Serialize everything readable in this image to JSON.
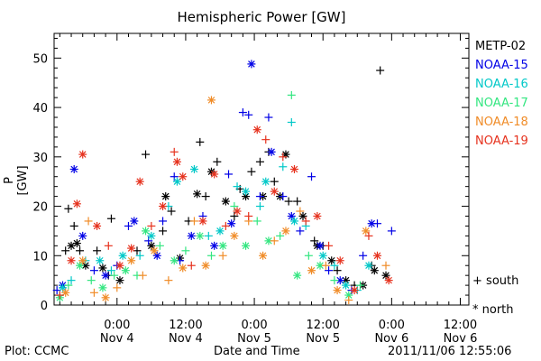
{
  "chart_data": {
    "type": "scatter",
    "title": "Hemispheric Power [GW]",
    "ylabel": "P [GW]",
    "xlabel": "Date and Time",
    "ylim": [
      0,
      55
    ],
    "y_ticks": [
      0,
      10,
      20,
      30,
      40,
      50
    ],
    "x_ticks": [
      {
        "time": "0:00",
        "date": "Nov 4",
        "hours": 0
      },
      {
        "time": "12:00",
        "date": "Nov 4",
        "hours": 12
      },
      {
        "time": "0:00",
        "date": "Nov 5",
        "hours": 24
      },
      {
        "time": "12:00",
        "date": "Nov 5",
        "hours": 36
      },
      {
        "time": "0:00",
        "date": "Nov 6",
        "hours": 48
      },
      {
        "time": "12:00",
        "date": "Nov 6",
        "hours": 60
      }
    ],
    "xlim_hours": [
      -11,
      61.5
    ],
    "marker_key": {
      "south": "+",
      "north": "*"
    },
    "series": [
      {
        "name": "METP-02",
        "color": "#000000",
        "points": [
          {
            "x": -9.0,
            "y": 11,
            "m": "+"
          },
          {
            "x": -8.5,
            "y": 19.5,
            "m": "+"
          },
          {
            "x": -8.0,
            "y": 12,
            "m": "*"
          },
          {
            "x": -7.5,
            "y": 16,
            "m": "+"
          },
          {
            "x": -7.0,
            "y": 12.5,
            "m": "*"
          },
          {
            "x": -6.5,
            "y": 11,
            "m": "+"
          },
          {
            "x": -5.5,
            "y": 8,
            "m": "*"
          },
          {
            "x": -3.5,
            "y": 11,
            "m": "+"
          },
          {
            "x": -2.5,
            "y": 7.5,
            "m": "*"
          },
          {
            "x": -1.5,
            "y": 6,
            "m": "+"
          },
          {
            "x": -1.0,
            "y": 17.5,
            "m": "+"
          },
          {
            "x": 0.5,
            "y": 5,
            "m": "*"
          },
          {
            "x": 3.5,
            "y": 11,
            "m": "+"
          },
          {
            "x": 5.0,
            "y": 30.5,
            "m": "+"
          },
          {
            "x": 6.0,
            "y": 12,
            "m": "*"
          },
          {
            "x": 8.0,
            "y": 15,
            "m": "+"
          },
          {
            "x": 8.5,
            "y": 22,
            "m": "*"
          },
          {
            "x": 9.5,
            "y": 19,
            "m": "+"
          },
          {
            "x": 11.0,
            "y": 9.5,
            "m": "*"
          },
          {
            "x": 12.5,
            "y": 17,
            "m": "+"
          },
          {
            "x": 14.0,
            "y": 22.5,
            "m": "*"
          },
          {
            "x": 14.5,
            "y": 33,
            "m": "+"
          },
          {
            "x": 15.5,
            "y": 22,
            "m": "+"
          },
          {
            "x": 16.5,
            "y": 27,
            "m": "*"
          },
          {
            "x": 17.5,
            "y": 29,
            "m": "+"
          },
          {
            "x": 19.0,
            "y": 21,
            "m": "*"
          },
          {
            "x": 20.5,
            "y": 18,
            "m": "+"
          },
          {
            "x": 21.5,
            "y": 23.5,
            "m": "+"
          },
          {
            "x": 22.5,
            "y": 22,
            "m": "*"
          },
          {
            "x": 23.5,
            "y": 27,
            "m": "+"
          },
          {
            "x": 25.0,
            "y": 29,
            "m": "+"
          },
          {
            "x": 25.5,
            "y": 22,
            "m": "*"
          },
          {
            "x": 26.5,
            "y": 31,
            "m": "+"
          },
          {
            "x": 27.5,
            "y": 25,
            "m": "+"
          },
          {
            "x": 28.5,
            "y": 22,
            "m": "*"
          },
          {
            "x": 29.5,
            "y": 30.5,
            "m": "*"
          },
          {
            "x": 30.0,
            "y": 21,
            "m": "+"
          },
          {
            "x": 31.5,
            "y": 21,
            "m": "+"
          },
          {
            "x": 32.5,
            "y": 18,
            "m": "*"
          },
          {
            "x": 34.5,
            "y": 13,
            "m": "+"
          },
          {
            "x": 35.0,
            "y": 12,
            "m": "*"
          },
          {
            "x": 36.0,
            "y": 12,
            "m": "+"
          },
          {
            "x": 37.5,
            "y": 9,
            "m": "*"
          },
          {
            "x": 38.5,
            "y": 7,
            "m": "+"
          },
          {
            "x": 40.0,
            "y": 5,
            "m": "*"
          },
          {
            "x": 41.5,
            "y": 4,
            "m": "+"
          },
          {
            "x": 43.0,
            "y": 4,
            "m": "*"
          },
          {
            "x": 44.5,
            "y": 8,
            "m": "+"
          },
          {
            "x": 45.0,
            "y": 7,
            "m": "*"
          },
          {
            "x": 46.0,
            "y": 47.5,
            "m": "+"
          },
          {
            "x": 47.0,
            "y": 6,
            "m": "*"
          }
        ]
      },
      {
        "name": "NOAA-15",
        "color": "#0000e6",
        "points": [
          {
            "x": -10.5,
            "y": 3,
            "m": "+"
          },
          {
            "x": -9.5,
            "y": 4,
            "m": "*"
          },
          {
            "x": -7.5,
            "y": 27.5,
            "m": "*"
          },
          {
            "x": -6.0,
            "y": 14,
            "m": "*"
          },
          {
            "x": -4.0,
            "y": 7,
            "m": "+"
          },
          {
            "x": -2.0,
            "y": 6,
            "m": "*"
          },
          {
            "x": 0.0,
            "y": 8,
            "m": "+"
          },
          {
            "x": 2.0,
            "y": 16,
            "m": "+"
          },
          {
            "x": 3.0,
            "y": 17,
            "m": "*"
          },
          {
            "x": 5.5,
            "y": 13,
            "m": "+"
          },
          {
            "x": 7.0,
            "y": 10,
            "m": "*"
          },
          {
            "x": 8.0,
            "y": 17,
            "m": "+"
          },
          {
            "x": 10.0,
            "y": 26,
            "m": "+"
          },
          {
            "x": 11.0,
            "y": 9,
            "m": "+"
          },
          {
            "x": 13.0,
            "y": 14,
            "m": "*"
          },
          {
            "x": 15.0,
            "y": 18,
            "m": "+"
          },
          {
            "x": 17.0,
            "y": 12,
            "m": "*"
          },
          {
            "x": 19.5,
            "y": 26.5,
            "m": "+"
          },
          {
            "x": 20.0,
            "y": 16.5,
            "m": "*"
          },
          {
            "x": 22.0,
            "y": 39,
            "m": "+"
          },
          {
            "x": 23.0,
            "y": 38.5,
            "m": "+"
          },
          {
            "x": 23.5,
            "y": 48.8,
            "m": "*"
          },
          {
            "x": 25.0,
            "y": 22,
            "m": "+"
          },
          {
            "x": 26.5,
            "y": 38,
            "m": "+"
          },
          {
            "x": 27.0,
            "y": 31,
            "m": "*"
          },
          {
            "x": 29.0,
            "y": 22,
            "m": "+"
          },
          {
            "x": 30.5,
            "y": 18,
            "m": "*"
          },
          {
            "x": 32.0,
            "y": 15,
            "m": "+"
          },
          {
            "x": 34.0,
            "y": 26,
            "m": "+"
          },
          {
            "x": 35.5,
            "y": 12,
            "m": "*"
          },
          {
            "x": 37.0,
            "y": 7,
            "m": "+"
          },
          {
            "x": 39.0,
            "y": 5,
            "m": "*"
          },
          {
            "x": 41.0,
            "y": 3,
            "m": "+"
          },
          {
            "x": 43.0,
            "y": 10,
            "m": "+"
          },
          {
            "x": 44.5,
            "y": 16.5,
            "m": "*"
          },
          {
            "x": 45.5,
            "y": 16.5,
            "m": "+"
          },
          {
            "x": 48.0,
            "y": 15,
            "m": "+"
          }
        ]
      },
      {
        "name": "NOAA-16",
        "color": "#00c8c8",
        "points": [
          {
            "x": -10.0,
            "y": 2,
            "m": "+"
          },
          {
            "x": -9.5,
            "y": 3.5,
            "m": "*"
          },
          {
            "x": -8.0,
            "y": 5,
            "m": "+"
          },
          {
            "x": -5.5,
            "y": 9,
            "m": "+"
          },
          {
            "x": -3.0,
            "y": 9,
            "m": "*"
          },
          {
            "x": -1.0,
            "y": 7,
            "m": "+"
          },
          {
            "x": 1.0,
            "y": 10,
            "m": "*"
          },
          {
            "x": 4.0,
            "y": 10,
            "m": "+"
          },
          {
            "x": 6.0,
            "y": 14,
            "m": "*"
          },
          {
            "x": 9.0,
            "y": 20,
            "m": "+"
          },
          {
            "x": 10.5,
            "y": 25,
            "m": "*"
          },
          {
            "x": 13.5,
            "y": 27.5,
            "m": "*"
          },
          {
            "x": 16.0,
            "y": 14,
            "m": "+"
          },
          {
            "x": 18.0,
            "y": 15,
            "m": "*"
          },
          {
            "x": 21.0,
            "y": 24,
            "m": "+"
          },
          {
            "x": 22.5,
            "y": 23,
            "m": "*"
          },
          {
            "x": 25.0,
            "y": 20,
            "m": "+"
          },
          {
            "x": 26.0,
            "y": 25,
            "m": "*"
          },
          {
            "x": 29.0,
            "y": 28,
            "m": "+"
          },
          {
            "x": 30.5,
            "y": 37,
            "m": "+"
          },
          {
            "x": 31.0,
            "y": 17,
            "m": "*"
          },
          {
            "x": 33.0,
            "y": 16,
            "m": "+"
          },
          {
            "x": 36.0,
            "y": 10,
            "m": "*"
          },
          {
            "x": 38.0,
            "y": 8,
            "m": "+"
          },
          {
            "x": 40.0,
            "y": 4,
            "m": "*"
          },
          {
            "x": 42.0,
            "y": 3,
            "m": "+"
          },
          {
            "x": 44.0,
            "y": 8,
            "m": "*"
          }
        ]
      },
      {
        "name": "NOAA-17",
        "color": "#33e680",
        "points": [
          {
            "x": -10.0,
            "y": 1.5,
            "m": "*"
          },
          {
            "x": -8.5,
            "y": 4,
            "m": "+"
          },
          {
            "x": -6.5,
            "y": 8,
            "m": "*"
          },
          {
            "x": -4.5,
            "y": 5,
            "m": "+"
          },
          {
            "x": -2.5,
            "y": 3.5,
            "m": "*"
          },
          {
            "x": -0.5,
            "y": 6,
            "m": "+"
          },
          {
            "x": 1.5,
            "y": 7,
            "m": "*"
          },
          {
            "x": 3.5,
            "y": 6,
            "m": "+"
          },
          {
            "x": 5.0,
            "y": 15,
            "m": "*"
          },
          {
            "x": 7.5,
            "y": 12,
            "m": "+"
          },
          {
            "x": 10.0,
            "y": 9,
            "m": "*"
          },
          {
            "x": 12.0,
            "y": 11,
            "m": "+"
          },
          {
            "x": 14.5,
            "y": 14,
            "m": "*"
          },
          {
            "x": 16.5,
            "y": 10,
            "m": "+"
          },
          {
            "x": 18.5,
            "y": 12,
            "m": "*"
          },
          {
            "x": 20.5,
            "y": 20,
            "m": "+"
          },
          {
            "x": 22.5,
            "y": 12,
            "m": "*"
          },
          {
            "x": 24.5,
            "y": 17,
            "m": "+"
          },
          {
            "x": 26.5,
            "y": 13,
            "m": "*"
          },
          {
            "x": 28.5,
            "y": 14,
            "m": "+"
          },
          {
            "x": 30.5,
            "y": 42.5,
            "m": "+"
          },
          {
            "x": 31.5,
            "y": 6,
            "m": "*"
          },
          {
            "x": 33.5,
            "y": 10,
            "m": "+"
          },
          {
            "x": 35.5,
            "y": 8,
            "m": "*"
          },
          {
            "x": 38.0,
            "y": 5,
            "m": "+"
          },
          {
            "x": 40.5,
            "y": 2,
            "m": "*"
          },
          {
            "x": 42.5,
            "y": 4,
            "m": "+"
          }
        ]
      },
      {
        "name": "NOAA-18",
        "color": "#f08c28",
        "points": [
          {
            "x": -9.0,
            "y": 2.5,
            "m": "*"
          },
          {
            "x": -6.0,
            "y": 9,
            "m": "*"
          },
          {
            "x": -5.0,
            "y": 17,
            "m": "+"
          },
          {
            "x": -4.0,
            "y": 2.5,
            "m": "+"
          },
          {
            "x": -2.0,
            "y": 1.5,
            "m": "*"
          },
          {
            "x": 0.0,
            "y": 3.5,
            "m": "+"
          },
          {
            "x": 2.5,
            "y": 9,
            "m": "*"
          },
          {
            "x": 4.5,
            "y": 6,
            "m": "+"
          },
          {
            "x": 6.5,
            "y": 11,
            "m": "*"
          },
          {
            "x": 9.0,
            "y": 5,
            "m": "+"
          },
          {
            "x": 11.5,
            "y": 7.5,
            "m": "*"
          },
          {
            "x": 13.5,
            "y": 17,
            "m": "+"
          },
          {
            "x": 15.5,
            "y": 8,
            "m": "*"
          },
          {
            "x": 16.5,
            "y": 41.5,
            "m": "*"
          },
          {
            "x": 18.5,
            "y": 10,
            "m": "+"
          },
          {
            "x": 20.5,
            "y": 14,
            "m": "*"
          },
          {
            "x": 23.0,
            "y": 17,
            "m": "+"
          },
          {
            "x": 25.5,
            "y": 10,
            "m": "*"
          },
          {
            "x": 27.5,
            "y": 13,
            "m": "+"
          },
          {
            "x": 29.5,
            "y": 15,
            "m": "*"
          },
          {
            "x": 32.0,
            "y": 19,
            "m": "+"
          },
          {
            "x": 34.0,
            "y": 7,
            "m": "*"
          },
          {
            "x": 36.5,
            "y": 8,
            "m": "+"
          },
          {
            "x": 38.5,
            "y": 3,
            "m": "*"
          },
          {
            "x": 40.5,
            "y": 1,
            "m": "+"
          },
          {
            "x": 43.5,
            "y": 15,
            "m": "*"
          },
          {
            "x": 47.0,
            "y": 8,
            "m": "+"
          }
        ]
      },
      {
        "name": "NOAA-19",
        "color": "#e6321e",
        "points": [
          {
            "x": -10.0,
            "y": 2,
            "m": "+"
          },
          {
            "x": -8.0,
            "y": 9,
            "m": "*"
          },
          {
            "x": -7.0,
            "y": 20.5,
            "m": "*"
          },
          {
            "x": -6.0,
            "y": 30.5,
            "m": "*"
          },
          {
            "x": -3.5,
            "y": 16,
            "m": "*"
          },
          {
            "x": -1.5,
            "y": 12,
            "m": "+"
          },
          {
            "x": 0.5,
            "y": 8,
            "m": "*"
          },
          {
            "x": 2.5,
            "y": 11.5,
            "m": "*"
          },
          {
            "x": 4.0,
            "y": 25,
            "m": "*"
          },
          {
            "x": 6.0,
            "y": 16,
            "m": "+"
          },
          {
            "x": 8.0,
            "y": 20,
            "m": "*"
          },
          {
            "x": 10.0,
            "y": 31,
            "m": "+"
          },
          {
            "x": 10.5,
            "y": 29,
            "m": "*"
          },
          {
            "x": 11.5,
            "y": 26,
            "m": "*"
          },
          {
            "x": 13.0,
            "y": 8,
            "m": "+"
          },
          {
            "x": 15.0,
            "y": 17,
            "m": "*"
          },
          {
            "x": 17.0,
            "y": 26.5,
            "m": "*"
          },
          {
            "x": 19.0,
            "y": 16,
            "m": "+"
          },
          {
            "x": 21.0,
            "y": 19,
            "m": "*"
          },
          {
            "x": 23.0,
            "y": 18,
            "m": "+"
          },
          {
            "x": 24.5,
            "y": 35.5,
            "m": "*"
          },
          {
            "x": 26.0,
            "y": 33.5,
            "m": "+"
          },
          {
            "x": 27.5,
            "y": 23,
            "m": "*"
          },
          {
            "x": 29.0,
            "y": 30,
            "m": "+"
          },
          {
            "x": 31.0,
            "y": 27.5,
            "m": "*"
          },
          {
            "x": 33.0,
            "y": 17,
            "m": "+"
          },
          {
            "x": 35.0,
            "y": 18,
            "m": "*"
          },
          {
            "x": 37.0,
            "y": 12,
            "m": "+"
          },
          {
            "x": 39.0,
            "y": 9,
            "m": "*"
          },
          {
            "x": 41.5,
            "y": 3,
            "m": "*"
          },
          {
            "x": 44.0,
            "y": 14,
            "m": "+"
          },
          {
            "x": 45.5,
            "y": 10,
            "m": "*"
          },
          {
            "x": 47.5,
            "y": 5,
            "m": "*"
          }
        ]
      }
    ]
  },
  "footer": {
    "left": "Plot: CCMC",
    "right": "2011/11/06 12:55:06"
  }
}
